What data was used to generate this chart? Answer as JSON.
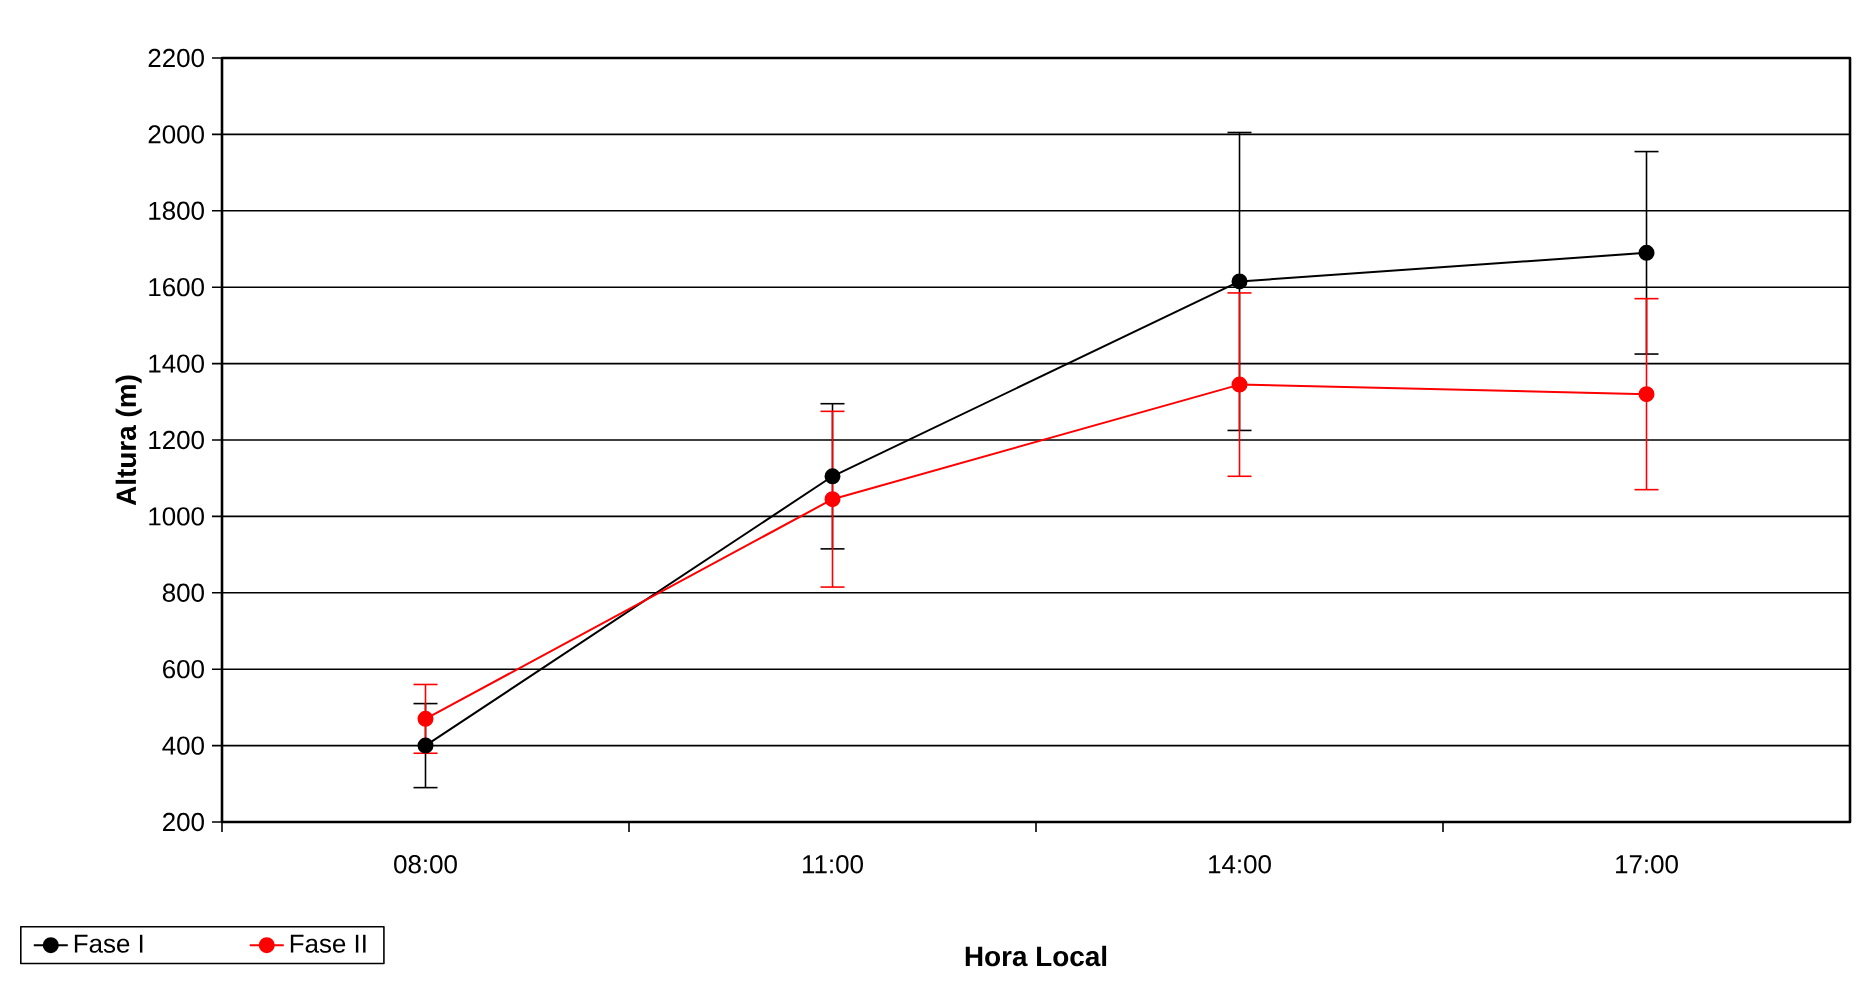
{
  "chart_data": {
    "type": "line",
    "xlabel": "Hora Local",
    "ylabel": "Altura (m)",
    "categories": [
      "08:00",
      "11:00",
      "14:00",
      "17:00"
    ],
    "series": [
      {
        "name": "Fase I",
        "color": "#000000",
        "values": [
          400,
          1105,
          1615,
          1690
        ],
        "errors": [
          110,
          190,
          390,
          265
        ]
      },
      {
        "name": "Fase II",
        "color": "#ff0000",
        "values": [
          470,
          1045,
          1345,
          1320
        ],
        "errors": [
          90,
          230,
          240,
          250
        ]
      }
    ],
    "ylim": [
      200,
      2200
    ],
    "yticks": [
      200,
      400,
      600,
      800,
      1000,
      1200,
      1400,
      1600,
      1800,
      2000,
      2200
    ],
    "grid": "y",
    "legend": "bottom left",
    "marker": "circle",
    "line_style": "solid"
  }
}
